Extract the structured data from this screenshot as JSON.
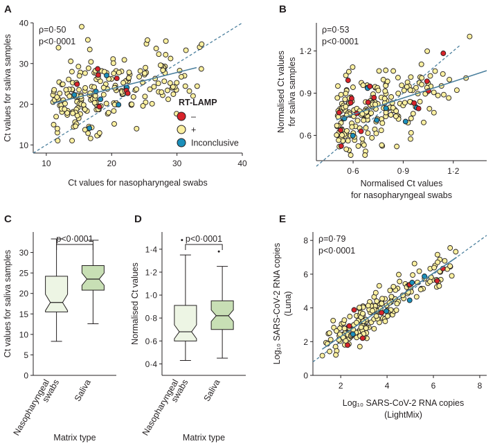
{
  "colors": {
    "point_yes": "#fbf0a0",
    "point_red": "#d8232a",
    "point_blue": "#1b8fba",
    "fit": "#4a7f9d",
    "identity": "#4a7f9d",
    "box_nasal": "#edf5e4",
    "box_saliva": "#c8dfb5",
    "axis": "#231f20"
  },
  "chart_data": [
    {
      "id": "A",
      "type": "scatter",
      "panel_label": "A",
      "xlabel": "Ct values for nasopharyngeal swabs",
      "ylabel": "Ct values for saliva samples",
      "xlim": [
        8,
        40
      ],
      "ylim": [
        8,
        40
      ],
      "xticks": [
        10,
        20,
        30,
        40
      ],
      "yticks": [
        10,
        20,
        30,
        40
      ],
      "xtick_labels": [
        "10",
        "20",
        "30",
        "40"
      ],
      "ytick_labels": [
        "10",
        "20",
        "30",
        "40"
      ],
      "stats": [
        "ρ=0·50",
        "p<0·0001"
      ],
      "legend_title": "RT-LAMP",
      "legend": [
        {
          "label": "–",
          "class": "red"
        },
        {
          "label": "+",
          "class": "yellow"
        },
        {
          "label": "Inconclusive",
          "class": "blue"
        }
      ],
      "fit_line": [
        [
          11,
          20.2
        ],
        [
          33,
          29.0
        ]
      ],
      "identity_line": [
        [
          8,
          8
        ],
        [
          40,
          40
        ]
      ],
      "n_seed": 11
    },
    {
      "id": "B",
      "type": "scatter",
      "panel_label": "B",
      "xlabel": [
        "Normalised Ct values",
        "for nasopharyngeal swabs"
      ],
      "ylabel": [
        "Normalised Ct values",
        "for saliva samples"
      ],
      "xlim": [
        0.38,
        1.4
      ],
      "ylim": [
        0.42,
        1.4
      ],
      "xticks": [
        0.6,
        0.9,
        1.2
      ],
      "yticks": [
        0.6,
        0.9,
        1.2
      ],
      "xtick_labels": [
        "0·6",
        "0·9",
        "1·2"
      ],
      "ytick_labels": [
        "0·6",
        "0·9",
        "1·2"
      ],
      "stats": [
        "ρ=0·53",
        "p<0·0001"
      ],
      "fit_line": [
        [
          0.5,
          0.71
        ],
        [
          1.4,
          1.06
        ]
      ],
      "identity_line": [
        [
          0.38,
          0.38
        ],
        [
          1.24,
          1.24
        ]
      ],
      "n_seed": 23
    },
    {
      "id": "C",
      "type": "boxplot",
      "panel_label": "C",
      "xlabel": "Matrix type",
      "ylabel": "Ct values for saliva samples",
      "ylim": [
        0,
        35
      ],
      "yticks": [
        0,
        5,
        10,
        15,
        20,
        25,
        30
      ],
      "ytick_labels": [
        "0",
        "5",
        "10",
        "15",
        "20",
        "25",
        "30"
      ],
      "categories": [
        "Nasopharyngeal swabs",
        "Saliva"
      ],
      "cat_lines": [
        [
          "Nasopharyngeal",
          "swabs"
        ],
        [
          "Saliva"
        ]
      ],
      "boxes": [
        {
          "min": 8.3,
          "q1": 15.5,
          "median": 17.8,
          "q3": 24.2,
          "max": 33.3,
          "notch": 2.0
        },
        {
          "min": 12.6,
          "q1": 20.8,
          "median": 23.5,
          "q3": 26.8,
          "max": 33.0,
          "notch": 1.5
        }
      ],
      "significance": "p<0·0001"
    },
    {
      "id": "D",
      "type": "boxplot",
      "panel_label": "D",
      "xlabel": "Matrix type",
      "ylabel": "Normalised Ct values",
      "ylim": [
        0.3,
        1.55
      ],
      "yticks": [
        0.4,
        0.6,
        0.8,
        1.0,
        1.2,
        1.4
      ],
      "ytick_labels": [
        "0·4",
        "0·6",
        "0·8",
        "1·0",
        "1·2",
        "1·4"
      ],
      "categories": [
        "Nasopharyngeal swabs",
        "Saliva"
      ],
      "cat_lines": [
        [
          "Nasopharyngeal",
          "swabs"
        ],
        [
          "Saliva"
        ]
      ],
      "boxes": [
        {
          "min": 0.43,
          "q1": 0.6,
          "median": 0.68,
          "q3": 0.91,
          "max": 1.35,
          "notch": 0.06,
          "outliers": [
            1.48
          ]
        },
        {
          "min": 0.45,
          "q1": 0.7,
          "median": 0.82,
          "q3": 0.95,
          "max": 1.25,
          "notch": 0.05,
          "outliers": [
            1.38
          ]
        }
      ],
      "significance": "p<0·0001"
    },
    {
      "id": "E",
      "type": "scatter",
      "panel_label": "E",
      "xlabel": [
        "Log₁₀ SARS-CoV-2 RNA copies",
        "(LightMix)"
      ],
      "ylabel": [
        "Log₁₀ SARS-CoV-2 RNA copies",
        "(Luna)"
      ],
      "xlim": [
        0.8,
        8.3
      ],
      "ylim": [
        0,
        8.5
      ],
      "xticks": [
        2,
        4,
        6,
        8
      ],
      "yticks": [
        0,
        2,
        4,
        6,
        8
      ],
      "xtick_labels": [
        "2",
        "4",
        "6",
        "8"
      ],
      "ytick_labels": [
        "0",
        "2",
        "4",
        "6",
        "8"
      ],
      "stats": [
        "ρ=0·79",
        "p<0·0001"
      ],
      "fit_line": [
        [
          1.2,
          1.55
        ],
        [
          7.0,
          7.0
        ]
      ],
      "identity_line": [
        [
          0.8,
          0.8
        ],
        [
          8.3,
          8.3
        ]
      ],
      "n_seed": 37
    }
  ]
}
